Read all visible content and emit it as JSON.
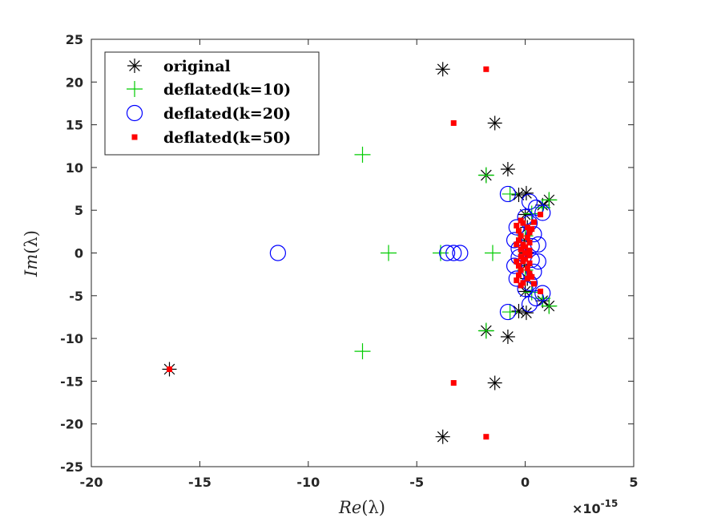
{
  "colors": {
    "original": "#000000",
    "k10": "#00cc00",
    "k20": "#0000ff",
    "k50": "#ff0000",
    "axis": "#262626"
  },
  "chart_data": {
    "type": "scatter",
    "title": "",
    "xlabel_base": "Re",
    "xlabel_arg": "(λ)",
    "ylabel_base": "Im",
    "ylabel_arg": "(λ)",
    "x_exponent": {
      "base": "×10",
      "exp": "-15"
    },
    "xlim": [
      -20,
      5
    ],
    "ylim": [
      -25,
      25
    ],
    "xticks": [
      -20,
      -15,
      -10,
      -5,
      0,
      5
    ],
    "yticks": [
      -25,
      -20,
      -15,
      -10,
      -5,
      0,
      5,
      10,
      15,
      20,
      25
    ],
    "legend_position": "top-left",
    "series": [
      {
        "name": "original",
        "marker": "asterisk",
        "points": [
          [
            -3.8,
            21.5
          ],
          [
            -3.8,
            -21.5
          ],
          [
            -1.4,
            15.2
          ],
          [
            -1.4,
            -15.2
          ],
          [
            -0.8,
            9.8
          ],
          [
            -0.8,
            -9.8
          ],
          [
            -1.8,
            9.1
          ],
          [
            -1.8,
            -9.1
          ],
          [
            0.05,
            7.0
          ],
          [
            0.05,
            -7.0
          ],
          [
            -0.3,
            6.8
          ],
          [
            -0.3,
            -6.8
          ],
          [
            1.1,
            6.2
          ],
          [
            1.1,
            -6.2
          ],
          [
            0.8,
            5.6
          ],
          [
            0.8,
            -5.6
          ],
          [
            -16.4,
            -13.6
          ],
          [
            0.0,
            4.5
          ],
          [
            0.0,
            -4.5
          ],
          [
            0.1,
            3.0
          ],
          [
            0.1,
            -3.0
          ],
          [
            0.0,
            1.5
          ],
          [
            0.0,
            -1.5
          ],
          [
            0.05,
            0.0
          ]
        ]
      },
      {
        "name": "deflated(k=10)",
        "marker": "plus",
        "points": [
          [
            -7.5,
            11.5
          ],
          [
            -7.5,
            -11.5
          ],
          [
            -6.3,
            0.0
          ],
          [
            -3.9,
            0.0
          ],
          [
            -1.5,
            0.0
          ],
          [
            -1.8,
            9.1
          ],
          [
            -1.8,
            -9.1
          ],
          [
            -0.7,
            6.9
          ],
          [
            -0.7,
            -6.9
          ],
          [
            1.1,
            6.2
          ],
          [
            1.1,
            -6.2
          ],
          [
            0.8,
            5.3
          ],
          [
            0.8,
            -5.3
          ],
          [
            0.3,
            4.6
          ],
          [
            0.3,
            -4.6
          ],
          [
            0.0,
            2.0
          ],
          [
            0.0,
            -2.0
          ]
        ]
      },
      {
        "name": "deflated(k=20)",
        "marker": "circle",
        "points": [
          [
            -11.4,
            0.0
          ],
          [
            -3.6,
            0.0
          ],
          [
            -3.3,
            0.0
          ],
          [
            -3.0,
            0.0
          ],
          [
            -0.8,
            6.9
          ],
          [
            -0.8,
            -6.9
          ],
          [
            0.2,
            6.0
          ],
          [
            0.2,
            -6.0
          ],
          [
            0.5,
            5.3
          ],
          [
            0.5,
            -5.3
          ],
          [
            0.8,
            4.7
          ],
          [
            0.8,
            -4.7
          ],
          [
            0.2,
            3.5
          ],
          [
            0.2,
            -3.5
          ],
          [
            0.4,
            2.2
          ],
          [
            0.4,
            -2.2
          ],
          [
            -0.5,
            1.5
          ],
          [
            -0.5,
            -1.5
          ],
          [
            -0.3,
            0.5
          ],
          [
            -0.3,
            -0.5
          ],
          [
            0.3,
            0.8
          ],
          [
            0.3,
            -0.8
          ],
          [
            0.6,
            1.0
          ],
          [
            0.6,
            -1.0
          ],
          [
            -0.4,
            3.0
          ],
          [
            -0.4,
            -3.0
          ],
          [
            0.0,
            4.2
          ],
          [
            0.0,
            -4.2
          ]
        ]
      },
      {
        "name": "deflated(k=50)",
        "marker": "square",
        "points": [
          [
            -1.8,
            21.5
          ],
          [
            -1.8,
            -21.5
          ],
          [
            -3.3,
            15.2
          ],
          [
            -3.3,
            -15.2
          ],
          [
            -16.4,
            -13.6
          ],
          [
            0.7,
            4.5
          ],
          [
            0.7,
            -4.5
          ],
          [
            0.4,
            3.6
          ],
          [
            0.4,
            -3.6
          ],
          [
            -0.2,
            3.8
          ],
          [
            -0.2,
            -3.8
          ],
          [
            -0.4,
            3.2
          ],
          [
            -0.4,
            -3.2
          ],
          [
            0.1,
            3.0
          ],
          [
            0.1,
            -3.0
          ],
          [
            -0.3,
            2.6
          ],
          [
            -0.3,
            -2.6
          ],
          [
            0.2,
            2.4
          ],
          [
            0.2,
            -2.4
          ],
          [
            -0.2,
            2.0
          ],
          [
            -0.2,
            -2.0
          ],
          [
            0.1,
            1.8
          ],
          [
            0.1,
            -1.8
          ],
          [
            -0.3,
            1.5
          ],
          [
            -0.3,
            -1.5
          ],
          [
            0.2,
            1.2
          ],
          [
            0.2,
            -1.2
          ],
          [
            -0.1,
            1.0
          ],
          [
            -0.1,
            -1.0
          ],
          [
            0.0,
            0.7
          ],
          [
            0.0,
            -0.7
          ],
          [
            -0.2,
            0.4
          ],
          [
            -0.2,
            -0.4
          ],
          [
            0.2,
            0.3
          ],
          [
            0.2,
            -0.3
          ],
          [
            0.0,
            0.0
          ],
          [
            -0.1,
            3.5
          ],
          [
            -0.1,
            -3.5
          ],
          [
            0.3,
            2.8
          ],
          [
            0.3,
            -2.8
          ],
          [
            -0.4,
            1.0
          ],
          [
            -0.4,
            -1.0
          ]
        ]
      }
    ]
  }
}
